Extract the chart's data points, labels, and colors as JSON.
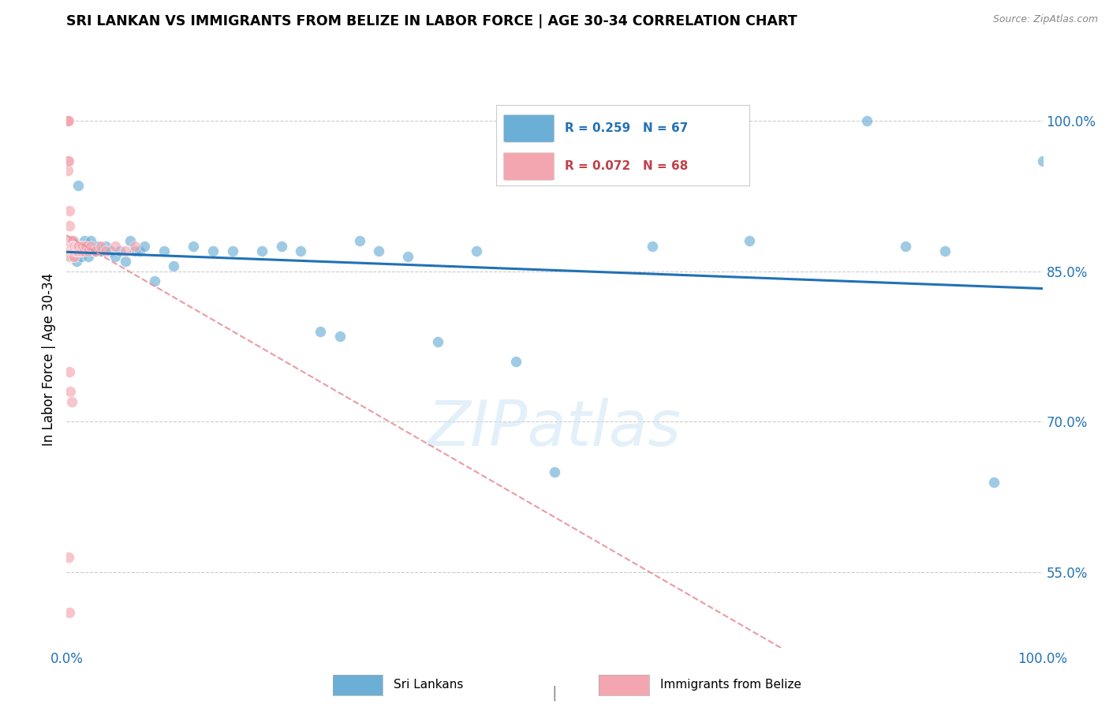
{
  "title": "SRI LANKAN VS IMMIGRANTS FROM BELIZE IN LABOR FORCE | AGE 30-34 CORRELATION CHART",
  "source": "Source: ZipAtlas.com",
  "ylabel": "In Labor Force | Age 30-34",
  "y_tick_labels": [
    "55.0%",
    "70.0%",
    "85.0%",
    "100.0%"
  ],
  "y_tick_values": [
    0.55,
    0.7,
    0.85,
    1.0
  ],
  "legend_label_blue": "Sri Lankans",
  "legend_label_pink": "Immigrants from Belize",
  "legend_blue_text": "R = 0.259   N = 67",
  "legend_pink_text": "R = 0.072   N = 68",
  "watermark": "ZIPatlas",
  "blue_color": "#6baed6",
  "pink_color": "#f4a6b0",
  "line_blue_color": "#2171b5",
  "line_pink_color": "#e8909a",
  "xlim": [
    0.0,
    1.0
  ],
  "ylim": [
    0.475,
    1.05
  ],
  "blue_scatter_x": [
    0.001,
    0.002,
    0.002,
    0.003,
    0.003,
    0.004,
    0.004,
    0.005,
    0.005,
    0.005,
    0.006,
    0.006,
    0.007,
    0.007,
    0.008,
    0.008,
    0.009,
    0.01,
    0.01,
    0.011,
    0.012,
    0.013,
    0.014,
    0.015,
    0.016,
    0.018,
    0.02,
    0.022,
    0.025,
    0.028,
    0.03,
    0.032,
    0.035,
    0.04,
    0.045,
    0.05,
    0.055,
    0.06,
    0.065,
    0.07,
    0.075,
    0.08,
    0.09,
    0.1,
    0.11,
    0.13,
    0.15,
    0.17,
    0.2,
    0.22,
    0.24,
    0.26,
    0.28,
    0.3,
    0.32,
    0.35,
    0.38,
    0.42,
    0.46,
    0.5,
    0.6,
    0.7,
    0.82,
    0.86,
    0.9,
    0.95,
    1.0
  ],
  "blue_scatter_y": [
    0.87,
    0.875,
    0.88,
    0.865,
    0.875,
    0.87,
    0.875,
    0.87,
    0.875,
    0.88,
    0.865,
    0.875,
    0.87,
    0.88,
    0.87,
    0.875,
    0.87,
    0.86,
    0.87,
    0.875,
    0.935,
    0.87,
    0.87,
    0.865,
    0.87,
    0.88,
    0.87,
    0.865,
    0.88,
    0.87,
    0.87,
    0.875,
    0.87,
    0.875,
    0.87,
    0.865,
    0.87,
    0.86,
    0.88,
    0.87,
    0.87,
    0.875,
    0.84,
    0.87,
    0.855,
    0.875,
    0.87,
    0.87,
    0.87,
    0.875,
    0.87,
    0.79,
    0.785,
    0.88,
    0.87,
    0.865,
    0.78,
    0.87,
    0.76,
    0.65,
    0.875,
    0.88,
    1.0,
    0.875,
    0.87,
    0.64,
    0.96
  ],
  "pink_scatter_x": [
    0.0002,
    0.0003,
    0.0004,
    0.0005,
    0.0006,
    0.0007,
    0.0008,
    0.0009,
    0.001,
    0.001,
    0.001,
    0.001,
    0.001,
    0.002,
    0.002,
    0.002,
    0.002,
    0.002,
    0.003,
    0.003,
    0.003,
    0.003,
    0.003,
    0.004,
    0.004,
    0.004,
    0.004,
    0.005,
    0.005,
    0.005,
    0.005,
    0.006,
    0.006,
    0.006,
    0.007,
    0.007,
    0.007,
    0.008,
    0.008,
    0.008,
    0.009,
    0.009,
    0.01,
    0.01,
    0.011,
    0.011,
    0.012,
    0.012,
    0.013,
    0.014,
    0.015,
    0.016,
    0.017,
    0.018,
    0.02,
    0.022,
    0.025,
    0.03,
    0.035,
    0.04,
    0.05,
    0.06,
    0.07,
    0.003,
    0.004,
    0.005,
    0.002,
    0.003
  ],
  "pink_scatter_y": [
    1.0,
    1.0,
    1.0,
    1.0,
    1.0,
    1.0,
    1.0,
    1.0,
    1.0,
    0.96,
    0.95,
    0.875,
    0.88,
    1.0,
    0.96,
    0.88,
    0.875,
    0.87,
    0.91,
    0.895,
    0.88,
    0.875,
    0.87,
    0.88,
    0.875,
    0.87,
    0.865,
    0.88,
    0.875,
    0.87,
    0.865,
    0.88,
    0.875,
    0.87,
    0.875,
    0.87,
    0.865,
    0.875,
    0.87,
    0.865,
    0.875,
    0.87,
    0.875,
    0.87,
    0.87,
    0.875,
    0.87,
    0.875,
    0.875,
    0.87,
    0.875,
    0.87,
    0.875,
    0.87,
    0.875,
    0.87,
    0.875,
    0.87,
    0.875,
    0.87,
    0.875,
    0.87,
    0.875,
    0.75,
    0.73,
    0.72,
    0.565,
    0.51
  ]
}
